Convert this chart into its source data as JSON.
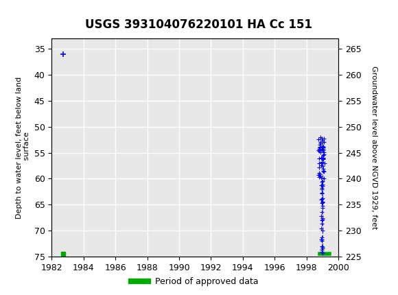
{
  "title": "USGS 393104076220101 HA Cc 151",
  "ylabel_left": "Depth to water level, feet below land\n surface",
  "ylabel_right": "Groundwater level above NGVD 1929, feet",
  "ylim_left": [
    75,
    33
  ],
  "ylim_right": [
    225,
    267
  ],
  "xlim": [
    1982,
    2000
  ],
  "xticks": [
    1982,
    1984,
    1986,
    1988,
    1990,
    1992,
    1994,
    1996,
    1998,
    2000
  ],
  "yticks_left": [
    35,
    40,
    45,
    50,
    55,
    60,
    65,
    70,
    75
  ],
  "yticks_right": [
    225,
    230,
    235,
    240,
    245,
    250,
    255,
    260,
    265
  ],
  "header_color": "#006341",
  "data_blue_cross_1982_x": 1982.7,
  "data_blue_cross_1982_y": 36.0,
  "data_green_sq_1982_x": 1982.7,
  "data_green_sq_1982_y": 74.5,
  "data_green_bar_x_start": 1998.85,
  "data_green_bar_x_end": 1999.45,
  "data_green_bar_y": 74.5,
  "background_color": "#ffffff",
  "plot_bg_color": "#e8e8e8",
  "grid_color": "#ffffff",
  "legend_label": "Period of approved data",
  "legend_color": "#00aa00",
  "blue_color": "#0000ff"
}
